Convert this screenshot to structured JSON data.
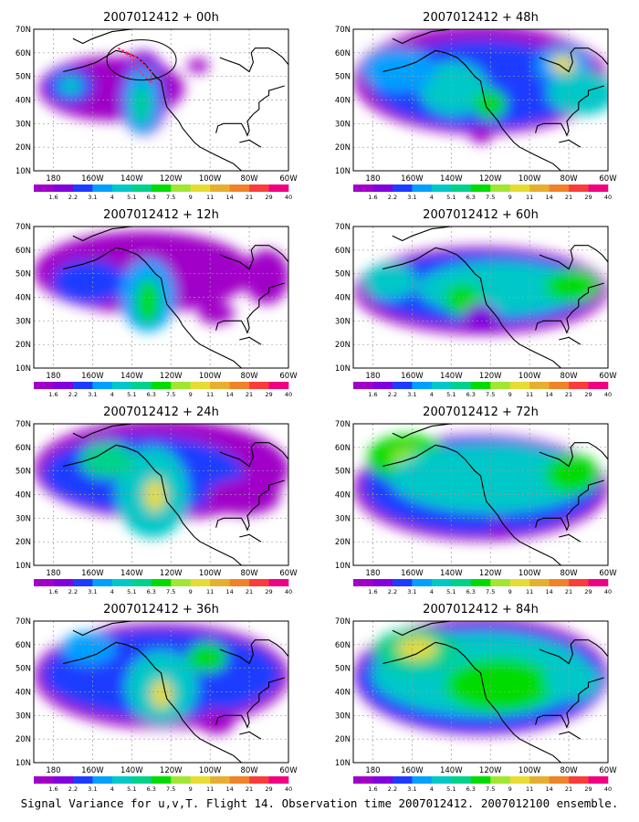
{
  "caption": "Signal Variance for u,v,T. Flight 14. Observation time 2007012412. 2007012100 ensemble.",
  "panels": [
    {
      "title": "2007012412 + 00h"
    },
    {
      "title": "2007012412 + 48h"
    },
    {
      "title": "2007012412 + 12h"
    },
    {
      "title": "2007012412 + 60h"
    },
    {
      "title": "2007012412 + 24h"
    },
    {
      "title": "2007012412 + 72h"
    },
    {
      "title": "2007012412 + 36h"
    },
    {
      "title": "2007012412 + 84h"
    }
  ],
  "map": {
    "lon_labels": [
      "180",
      "160W",
      "140W",
      "120W",
      "100W",
      "80W",
      "60W"
    ],
    "lat_labels": [
      "10N",
      "20N",
      "30N",
      "40N",
      "50N",
      "60N",
      "70N"
    ]
  },
  "colorbar": {
    "labels": [
      "1.6",
      "2.2",
      "3.1",
      "4",
      "5.1",
      "6.3",
      "7.5",
      "9",
      "11",
      "14",
      "21",
      "29",
      "40"
    ],
    "colors": [
      "#a000c8",
      "#8200dc",
      "#1e3cff",
      "#00a0ff",
      "#00c8c8",
      "#00d28c",
      "#00dc00",
      "#a0e632",
      "#e6dc32",
      "#e6af2d",
      "#f08228",
      "#fa3c3c",
      "#f00082"
    ]
  },
  "style": {
    "land_outline": "#000000",
    "grid": "#9a9a9a",
    "flight_track": "#ff2a6a"
  }
}
